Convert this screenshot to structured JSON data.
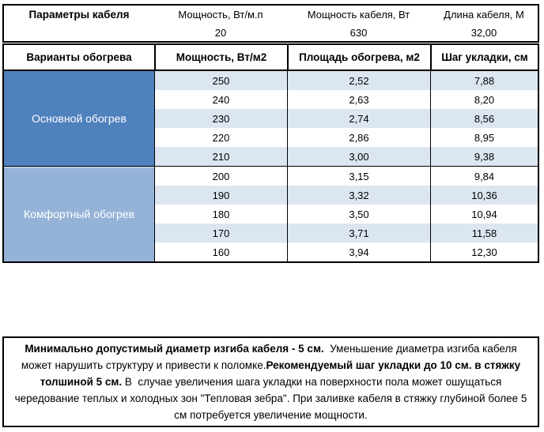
{
  "colors": {
    "section_main_blue": "#4f81bd",
    "section_comfort_blue": "#95b3d7",
    "stripe_blue": "#dce6f1",
    "selection_green": "#217346",
    "border_black": "#000000"
  },
  "param_box": {
    "title": "Параметры кабеля",
    "columns": [
      {
        "label": "Мощность, Вт/м.п",
        "value": "20"
      },
      {
        "label": "Мощность кабеля, Вт",
        "value": "630"
      },
      {
        "label": "Длина кабеля, М",
        "value": "32,00"
      }
    ]
  },
  "table": {
    "headers": [
      "Варианты обогрева",
      "Мощность, Вт/м2",
      "Площадь обогрева, м2",
      "Шаг укладки, см"
    ],
    "sections": [
      {
        "label": "Основной обогрев",
        "rows": [
          [
            "250",
            "2,52",
            "7,88"
          ],
          [
            "240",
            "2,63",
            "8,20"
          ],
          [
            "230",
            "2,74",
            "8,56"
          ],
          [
            "220",
            "2,86",
            "8,95"
          ],
          [
            "210",
            "3,00",
            "9,38"
          ]
        ]
      },
      {
        "label": "Комфортный обогрев",
        "rows": [
          [
            "200",
            "3,15",
            "9,84"
          ],
          [
            "190",
            "3,32",
            "10,36"
          ],
          [
            "180",
            "3,50",
            "10,94"
          ],
          [
            "170",
            "3,71",
            "11,58"
          ],
          [
            "160",
            "3,94",
            "12,30"
          ]
        ]
      }
    ],
    "selected_cell": {
      "section": "Комфортный обогрев",
      "row": "200",
      "column": "Площадь обогрева, м2",
      "value": "3,15"
    }
  },
  "note": {
    "parts": [
      {
        "text": "Минимально допустимый диаметр изгиба кабеля - 5 см."
      },
      {
        "text": "  Уменьшение диаметра изгиба кабеля может нарушить структуру и привести к поломке."
      },
      {
        "text": "Рекомендуемый шаг укладки до 10 см. в стяжку толшиной 5 см."
      },
      {
        "text": " В  случае увеличения шага укладки на поверхности пола может ошущаться чередование теплых и холодных зон \"Тепловая зебра\". При заливке кабеля в стяжку глубиной более 5 см потребуется увеличение мощности."
      }
    ]
  }
}
